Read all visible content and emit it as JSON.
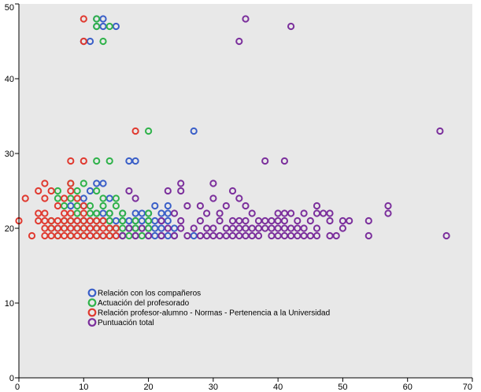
{
  "chart_data": {
    "type": "scatter",
    "title": "",
    "xlabel": "",
    "ylabel": "",
    "xlim": [
      0,
      70
    ],
    "ylim": [
      0,
      50
    ],
    "x_ticks": [
      "0",
      "10",
      "20",
      "30",
      "40",
      "50",
      "60",
      "70"
    ],
    "y_ticks": [
      "0",
      "10",
      "20",
      "30",
      "40",
      "50"
    ],
    "grid": false,
    "background_color": "#e8e8e8",
    "legend_position": "bottom-left",
    "series": [
      {
        "name": "Relación con los compañeros",
        "color": "#3a5fc8",
        "marker": "open-circle",
        "points": [
          [
            12,
            48
          ],
          [
            13,
            48
          ],
          [
            12,
            47
          ],
          [
            13,
            47
          ],
          [
            15,
            47
          ],
          [
            11,
            45
          ],
          [
            10,
            45
          ],
          [
            27,
            33
          ],
          [
            17,
            29
          ],
          [
            18,
            29
          ],
          [
            12,
            26
          ],
          [
            13,
            26
          ],
          [
            11,
            25
          ],
          [
            10,
            24
          ],
          [
            14,
            24
          ],
          [
            8,
            23
          ],
          [
            10,
            23
          ],
          [
            12,
            22
          ],
          [
            13,
            22
          ],
          [
            14,
            22
          ],
          [
            16,
            22
          ],
          [
            18,
            22
          ],
          [
            19,
            22
          ],
          [
            20,
            22
          ],
          [
            21,
            23
          ],
          [
            23,
            23
          ],
          [
            22,
            22
          ],
          [
            23,
            22
          ],
          [
            9,
            21
          ],
          [
            10,
            21
          ],
          [
            11,
            21
          ],
          [
            13,
            21
          ],
          [
            14,
            21
          ],
          [
            15,
            21
          ],
          [
            16,
            21
          ],
          [
            17,
            21
          ],
          [
            18,
            21
          ],
          [
            19,
            21
          ],
          [
            20,
            21
          ],
          [
            21,
            21
          ],
          [
            22,
            21
          ],
          [
            23,
            21
          ],
          [
            6,
            20
          ],
          [
            8,
            20
          ],
          [
            9,
            20
          ],
          [
            11,
            20
          ],
          [
            12,
            20
          ],
          [
            14,
            20
          ],
          [
            15,
            20
          ],
          [
            17,
            20
          ],
          [
            18,
            20
          ],
          [
            19,
            20
          ],
          [
            20,
            20
          ],
          [
            21,
            20
          ],
          [
            22,
            20
          ],
          [
            24,
            20
          ],
          [
            11,
            19
          ],
          [
            13,
            19
          ],
          [
            15,
            19
          ],
          [
            16,
            19
          ],
          [
            18,
            19
          ],
          [
            20,
            19
          ],
          [
            21,
            19
          ],
          [
            22,
            19
          ],
          [
            23,
            19
          ],
          [
            24,
            19
          ],
          [
            27,
            19
          ]
        ]
      },
      {
        "name": "Actuación del profesorado",
        "color": "#2fb24a",
        "marker": "open-circle",
        "points": [
          [
            12,
            48
          ],
          [
            12,
            47
          ],
          [
            14,
            47
          ],
          [
            13,
            45
          ],
          [
            20,
            33
          ],
          [
            12,
            29
          ],
          [
            14,
            29
          ],
          [
            8,
            26
          ],
          [
            10,
            26
          ],
          [
            6,
            25
          ],
          [
            9,
            25
          ],
          [
            12,
            25
          ],
          [
            6,
            24
          ],
          [
            8,
            24
          ],
          [
            13,
            24
          ],
          [
            15,
            24
          ],
          [
            7,
            23
          ],
          [
            9,
            23
          ],
          [
            11,
            23
          ],
          [
            13,
            23
          ],
          [
            15,
            23
          ],
          [
            9,
            22
          ],
          [
            11,
            22
          ],
          [
            12,
            22
          ],
          [
            14,
            22
          ],
          [
            16,
            22
          ],
          [
            20,
            22
          ],
          [
            5,
            21
          ],
          [
            7,
            21
          ],
          [
            8,
            21
          ],
          [
            10,
            21
          ],
          [
            12,
            21
          ],
          [
            14,
            21
          ],
          [
            16,
            21
          ],
          [
            18,
            21
          ],
          [
            20,
            21
          ],
          [
            5,
            20
          ],
          [
            7,
            20
          ],
          [
            9,
            20
          ],
          [
            10,
            20
          ],
          [
            12,
            20
          ],
          [
            14,
            20
          ],
          [
            15,
            20
          ],
          [
            16,
            20
          ],
          [
            18,
            20
          ],
          [
            20,
            20
          ],
          [
            6,
            19
          ],
          [
            8,
            19
          ],
          [
            10,
            19
          ],
          [
            12,
            19
          ],
          [
            14,
            19
          ],
          [
            16,
            19
          ],
          [
            17,
            19
          ],
          [
            19,
            19
          ]
        ]
      },
      {
        "name": "Relación profesor-alumno - Normas - Pertenencia a la Universidad",
        "color": "#e03a30",
        "marker": "open-circle",
        "points": [
          [
            10,
            48
          ],
          [
            10,
            45
          ],
          [
            18,
            33
          ],
          [
            8,
            29
          ],
          [
            10,
            29
          ],
          [
            4,
            26
          ],
          [
            8,
            26
          ],
          [
            3,
            25
          ],
          [
            5,
            25
          ],
          [
            8,
            25
          ],
          [
            1,
            24
          ],
          [
            4,
            24
          ],
          [
            7,
            24
          ],
          [
            9,
            24
          ],
          [
            6,
            23
          ],
          [
            10,
            23
          ],
          [
            3,
            22
          ],
          [
            4,
            22
          ],
          [
            7,
            22
          ],
          [
            8,
            22
          ],
          [
            10,
            22
          ],
          [
            0,
            21
          ],
          [
            3,
            21
          ],
          [
            4,
            21
          ],
          [
            5,
            21
          ],
          [
            6,
            21
          ],
          [
            7,
            21
          ],
          [
            8,
            21
          ],
          [
            9,
            21
          ],
          [
            10,
            21
          ],
          [
            11,
            21
          ],
          [
            12,
            21
          ],
          [
            13,
            21
          ],
          [
            4,
            20
          ],
          [
            5,
            20
          ],
          [
            6,
            20
          ],
          [
            7,
            20
          ],
          [
            8,
            20
          ],
          [
            9,
            20
          ],
          [
            10,
            20
          ],
          [
            11,
            20
          ],
          [
            12,
            20
          ],
          [
            13,
            20
          ],
          [
            14,
            20
          ],
          [
            15,
            20
          ],
          [
            2,
            19
          ],
          [
            4,
            19
          ],
          [
            5,
            19
          ],
          [
            6,
            19
          ],
          [
            7,
            19
          ],
          [
            8,
            19
          ],
          [
            9,
            19
          ],
          [
            10,
            19
          ],
          [
            11,
            19
          ],
          [
            12,
            19
          ],
          [
            13,
            19
          ],
          [
            14,
            19
          ],
          [
            15,
            19
          ]
        ]
      },
      {
        "name": "Puntuación total",
        "color": "#7b2f9c",
        "marker": "open-circle",
        "points": [
          [
            35,
            48
          ],
          [
            42,
            47
          ],
          [
            34,
            45
          ],
          [
            65,
            33
          ],
          [
            38,
            29
          ],
          [
            41,
            29
          ],
          [
            25,
            26
          ],
          [
            30,
            26
          ],
          [
            17,
            25
          ],
          [
            23,
            25
          ],
          [
            25,
            25
          ],
          [
            33,
            25
          ],
          [
            18,
            24
          ],
          [
            30,
            24
          ],
          [
            34,
            24
          ],
          [
            26,
            23
          ],
          [
            28,
            23
          ],
          [
            32,
            23
          ],
          [
            35,
            23
          ],
          [
            46,
            23
          ],
          [
            57,
            23
          ],
          [
            24,
            22
          ],
          [
            29,
            22
          ],
          [
            31,
            22
          ],
          [
            36,
            22
          ],
          [
            40,
            22
          ],
          [
            41,
            22
          ],
          [
            42,
            22
          ],
          [
            44,
            22
          ],
          [
            46,
            22
          ],
          [
            47,
            22
          ],
          [
            48,
            22
          ],
          [
            57,
            22
          ],
          [
            22,
            21
          ],
          [
            25,
            21
          ],
          [
            28,
            21
          ],
          [
            31,
            21
          ],
          [
            33,
            21
          ],
          [
            34,
            21
          ],
          [
            35,
            21
          ],
          [
            37,
            21
          ],
          [
            38,
            21
          ],
          [
            39,
            21
          ],
          [
            40,
            21
          ],
          [
            41,
            21
          ],
          [
            43,
            21
          ],
          [
            45,
            21
          ],
          [
            48,
            21
          ],
          [
            50,
            21
          ],
          [
            51,
            21
          ],
          [
            54,
            21
          ],
          [
            17,
            20
          ],
          [
            19,
            20
          ],
          [
            23,
            20
          ],
          [
            25,
            20
          ],
          [
            27,
            20
          ],
          [
            29,
            20
          ],
          [
            30,
            20
          ],
          [
            32,
            20
          ],
          [
            33,
            20
          ],
          [
            34,
            20
          ],
          [
            35,
            20
          ],
          [
            36,
            20
          ],
          [
            37,
            20
          ],
          [
            38,
            20
          ],
          [
            39,
            20
          ],
          [
            40,
            20
          ],
          [
            41,
            20
          ],
          [
            42,
            20
          ],
          [
            43,
            20
          ],
          [
            44,
            20
          ],
          [
            46,
            20
          ],
          [
            50,
            20
          ],
          [
            16,
            19
          ],
          [
            18,
            19
          ],
          [
            20,
            19
          ],
          [
            22,
            19
          ],
          [
            24,
            19
          ],
          [
            26,
            19
          ],
          [
            28,
            19
          ],
          [
            29,
            19
          ],
          [
            30,
            19
          ],
          [
            31,
            19
          ],
          [
            32,
            19
          ],
          [
            33,
            19
          ],
          [
            34,
            19
          ],
          [
            35,
            19
          ],
          [
            36,
            19
          ],
          [
            37,
            19
          ],
          [
            39,
            19
          ],
          [
            40,
            19
          ],
          [
            41,
            19
          ],
          [
            42,
            19
          ],
          [
            43,
            19
          ],
          [
            44,
            19
          ],
          [
            45,
            19
          ],
          [
            46,
            19
          ],
          [
            48,
            19
          ],
          [
            49,
            19
          ],
          [
            54,
            19
          ],
          [
            66,
            19
          ]
        ]
      }
    ]
  }
}
